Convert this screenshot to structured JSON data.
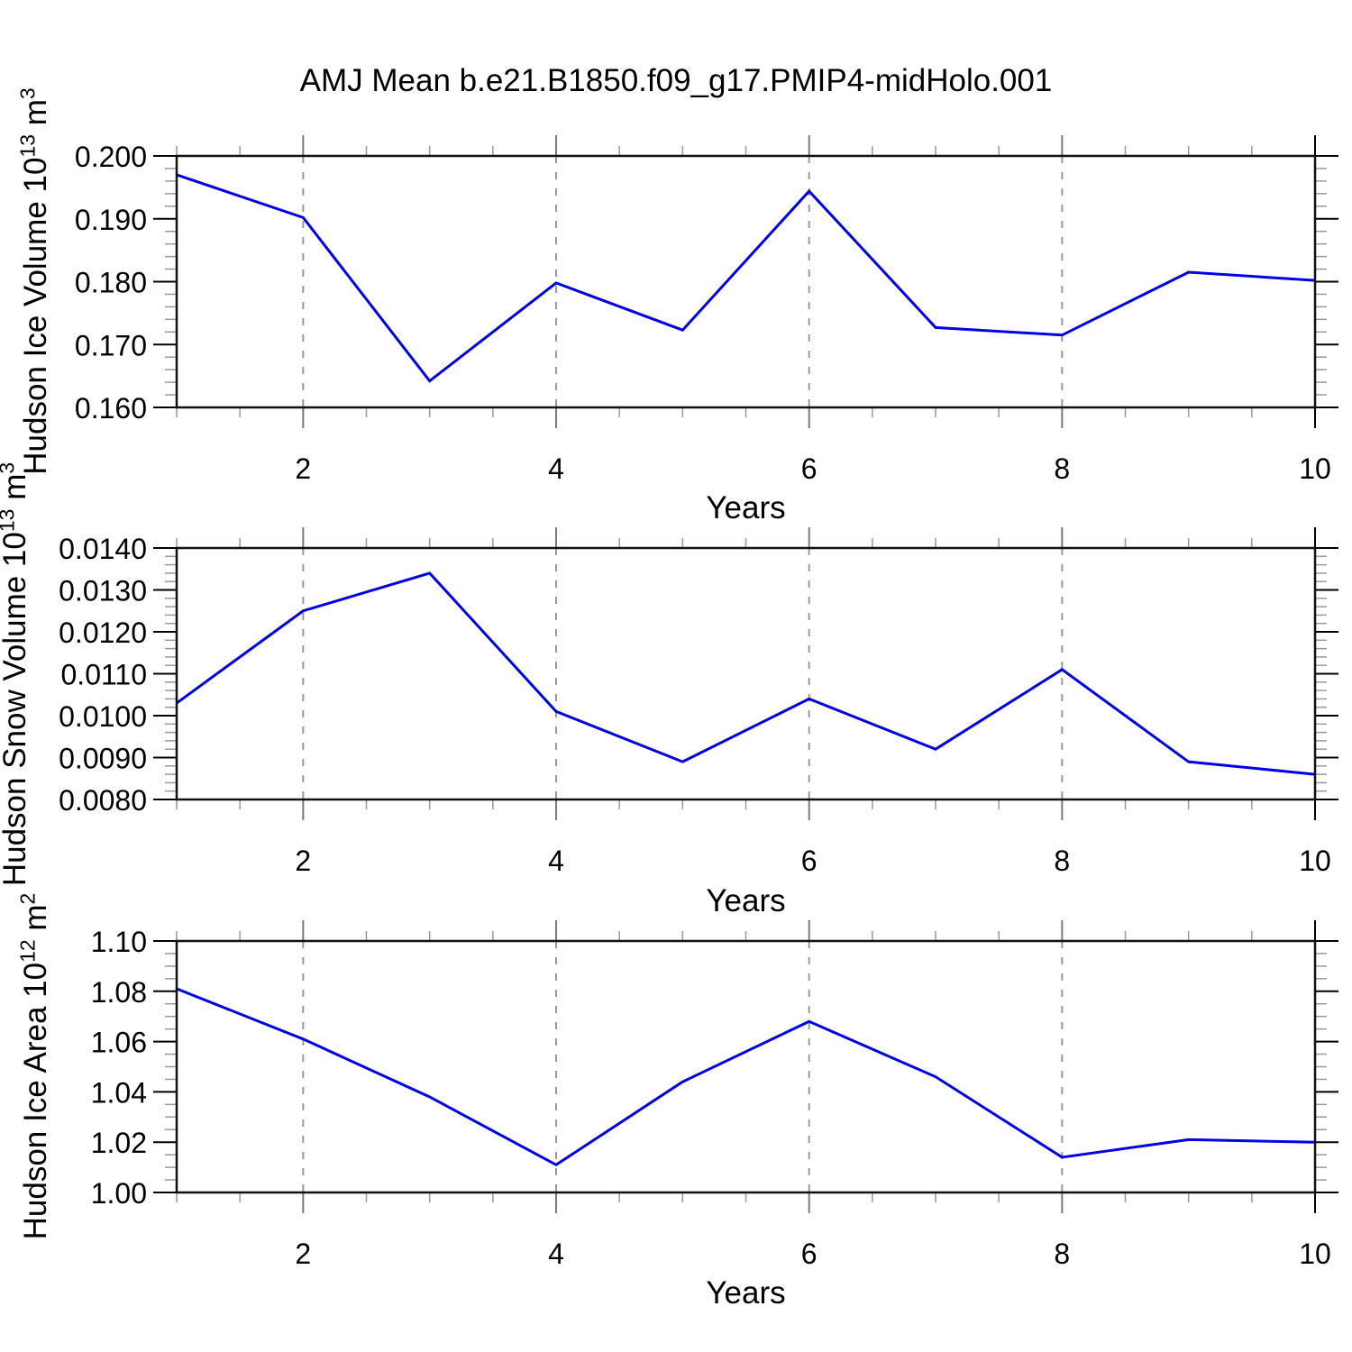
{
  "title": "AMJ Mean b.e21.B1850.f09_g17.PMIP4-midHolo.001",
  "colors": {
    "line": "#0000e6",
    "grid": "#999999",
    "frame": "#111111",
    "minor_tick": "#999999",
    "major_tick": "#000000",
    "major_tick_on_grid": "#7a7a7a",
    "text": "#000000"
  },
  "chart_data": [
    {
      "type": "line",
      "x": [
        1,
        2,
        3,
        4,
        5,
        6,
        7,
        8,
        9,
        10
      ],
      "values": [
        0.197,
        0.1902,
        0.1642,
        0.1798,
        0.1723,
        0.1944,
        0.1727,
        0.1715,
        0.1815,
        0.1802
      ],
      "xlabel": "Years",
      "ylabel_parts": {
        "base": "Hudson Ice Volume 10",
        "exp": "13",
        "unit": " m",
        "unit_exp": "3"
      },
      "xlim": [
        1,
        10
      ],
      "ylim": [
        0.16,
        0.2
      ],
      "yticks": [
        0.16,
        0.17,
        0.18,
        0.19,
        0.2
      ],
      "ytick_labels": [
        "0.160",
        "0.170",
        "0.180",
        "0.190",
        "0.200"
      ],
      "y_minor_step": 0.002,
      "xticks_major": [
        2,
        4,
        6,
        8,
        10
      ],
      "xtick_labels": [
        "2",
        "4",
        "6",
        "8",
        "10"
      ],
      "x_minor_step": 0.5,
      "gridlines_x": [
        2,
        4,
        6,
        8
      ],
      "legend": "none",
      "grid": "vertical-dashed"
    },
    {
      "type": "line",
      "x": [
        1,
        2,
        3,
        4,
        5,
        6,
        7,
        8,
        9,
        10
      ],
      "values": [
        0.0103,
        0.0125,
        0.0134,
        0.0101,
        0.0089,
        0.0104,
        0.0092,
        0.0111,
        0.0089,
        0.0086
      ],
      "xlabel": "Years",
      "ylabel_parts": {
        "base": "Hudson Snow Volume 10",
        "exp": "13",
        "unit": " m",
        "unit_exp": "3"
      },
      "xlim": [
        1,
        10
      ],
      "ylim": [
        0.008,
        0.014
      ],
      "yticks": [
        0.008,
        0.009,
        0.01,
        0.011,
        0.012,
        0.013,
        0.014
      ],
      "ytick_labels": [
        "0.0080",
        "0.0090",
        "0.0100",
        "0.0110",
        "0.0120",
        "0.0130",
        "0.0140"
      ],
      "y_minor_step": 0.0002,
      "xticks_major": [
        2,
        4,
        6,
        8,
        10
      ],
      "xtick_labels": [
        "2",
        "4",
        "6",
        "8",
        "10"
      ],
      "x_minor_step": 0.5,
      "gridlines_x": [
        2,
        4,
        6,
        8
      ],
      "legend": "none",
      "grid": "vertical-dashed"
    },
    {
      "type": "line",
      "x": [
        1,
        2,
        3,
        4,
        5,
        6,
        7,
        8,
        9,
        10
      ],
      "values": [
        1.081,
        1.061,
        1.038,
        1.011,
        1.044,
        1.068,
        1.046,
        1.014,
        1.021,
        1.02
      ],
      "xlabel": "Years",
      "ylabel_parts": {
        "base": "Hudson Ice Area 10",
        "exp": "12",
        "unit": " m",
        "unit_exp": "2"
      },
      "xlim": [
        1,
        10
      ],
      "ylim": [
        1.0,
        1.1
      ],
      "yticks": [
        1.0,
        1.02,
        1.04,
        1.06,
        1.08,
        1.1
      ],
      "ytick_labels": [
        "1.00",
        "1.02",
        "1.04",
        "1.06",
        "1.08",
        "1.10"
      ],
      "y_minor_step": 0.005,
      "xticks_major": [
        2,
        4,
        6,
        8,
        10
      ],
      "xtick_labels": [
        "2",
        "4",
        "6",
        "8",
        "10"
      ],
      "x_minor_step": 0.5,
      "gridlines_x": [
        2,
        4,
        6,
        8
      ],
      "legend": "none",
      "grid": "vertical-dashed"
    }
  ]
}
